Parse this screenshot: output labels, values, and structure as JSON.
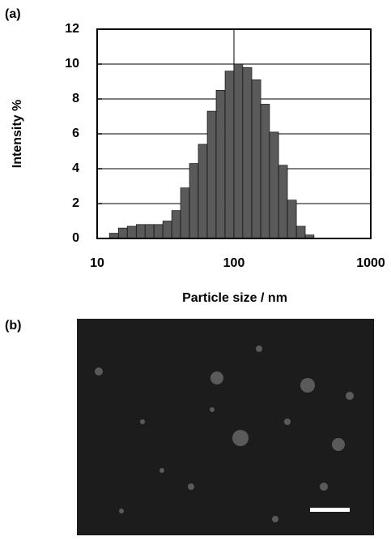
{
  "panel_labels": [
    "(a)",
    "(b)"
  ],
  "chart_data": {
    "type": "histogram",
    "xlabel": "Particle size / nm",
    "ylabel": "Intensity %",
    "bins": [
      12.3,
      14.3,
      16.6,
      19.3,
      22.4,
      26.0,
      30.2,
      35.1,
      40.7,
      47.3,
      54.9,
      63.8,
      74.1,
      86.1,
      100,
      116,
      135,
      157,
      182,
      212,
      246,
      286,
      332,
      385
    ],
    "values": [
      0.3,
      0.6,
      0.7,
      0.8,
      0.8,
      0.8,
      1.0,
      1.6,
      2.9,
      4.3,
      5.4,
      7.3,
      8.5,
      9.6,
      10.0,
      9.8,
      9.1,
      7.7,
      6.1,
      4.2,
      2.2,
      0.7,
      0.2
    ],
    "color": "#5a5a5a",
    "xscale": "log",
    "xlim": [
      10,
      1000
    ],
    "xticks": [
      10,
      100,
      1000
    ],
    "ylim": [
      0,
      12
    ],
    "yticks": [
      0,
      2,
      4,
      6,
      8,
      10,
      12
    ],
    "grid": true
  }
}
